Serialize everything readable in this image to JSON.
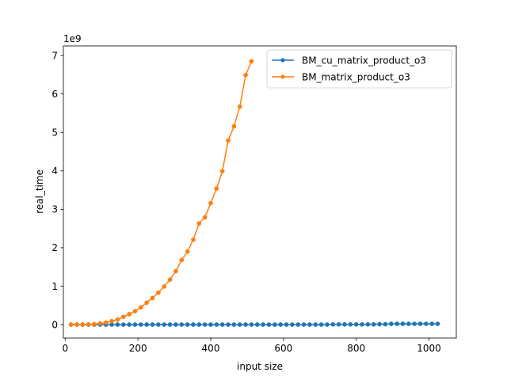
{
  "chart_data": {
    "type": "line",
    "xlabel": "input size",
    "ylabel": "real_time",
    "offset_text": "1e9",
    "xlim": [
      -5,
      1075
    ],
    "ylim": [
      -0.35,
      7.25
    ],
    "x_ticks": [
      0,
      200,
      400,
      600,
      800,
      1000
    ],
    "y_ticks": [
      0,
      1,
      2,
      3,
      4,
      5,
      6,
      7
    ],
    "y_units": "1e9",
    "legend_position": "top-right",
    "series": [
      {
        "name": "BM_cu_matrix_product_o3",
        "color": "#1f77b4",
        "x": [
          16,
          32,
          48,
          64,
          80,
          96,
          112,
          128,
          144,
          160,
          176,
          192,
          208,
          224,
          240,
          256,
          272,
          288,
          304,
          320,
          336,
          352,
          368,
          384,
          400,
          416,
          432,
          448,
          464,
          480,
          496,
          512,
          528,
          544,
          560,
          576,
          592,
          608,
          624,
          640,
          656,
          672,
          688,
          704,
          720,
          736,
          752,
          768,
          784,
          800,
          816,
          832,
          848,
          864,
          880,
          896,
          912,
          928,
          944,
          960,
          976,
          992,
          1008,
          1024
        ],
        "y": [
          0,
          0,
          0,
          0,
          0,
          0,
          0,
          0,
          0,
          0,
          0,
          0,
          0,
          0,
          0,
          0,
          0,
          0,
          0,
          0,
          0,
          0,
          0,
          0,
          0,
          0,
          0,
          0,
          0,
          0,
          0,
          0,
          0,
          0,
          0,
          0,
          0,
          0,
          0,
          0,
          0,
          0,
          0,
          0,
          0,
          0.005,
          0.005,
          0.005,
          0.005,
          0.005,
          0.005,
          0.005,
          0.005,
          0.01,
          0.01,
          0.02,
          0.02,
          0.02,
          0.02,
          0.02,
          0.02,
          0.02,
          0.02,
          0.02
        ]
      },
      {
        "name": "BM_matrix_product_o3",
        "color": "#ff7f0e",
        "x": [
          16,
          32,
          48,
          64,
          80,
          96,
          112,
          128,
          144,
          160,
          176,
          192,
          208,
          224,
          240,
          256,
          272,
          288,
          304,
          320,
          336,
          352,
          368,
          384,
          400,
          416,
          432,
          448,
          464,
          480,
          496,
          512
        ],
        "y": [
          0,
          0,
          0.001,
          0.005,
          0.01,
          0.03,
          0.05,
          0.09,
          0.13,
          0.2,
          0.27,
          0.35,
          0.45,
          0.57,
          0.69,
          0.83,
          0.99,
          1.17,
          1.39,
          1.68,
          1.9,
          2.21,
          2.63,
          2.79,
          3.16,
          3.54,
          3.99,
          4.79,
          5.16,
          5.67,
          6.49,
          6.85
        ]
      }
    ]
  }
}
